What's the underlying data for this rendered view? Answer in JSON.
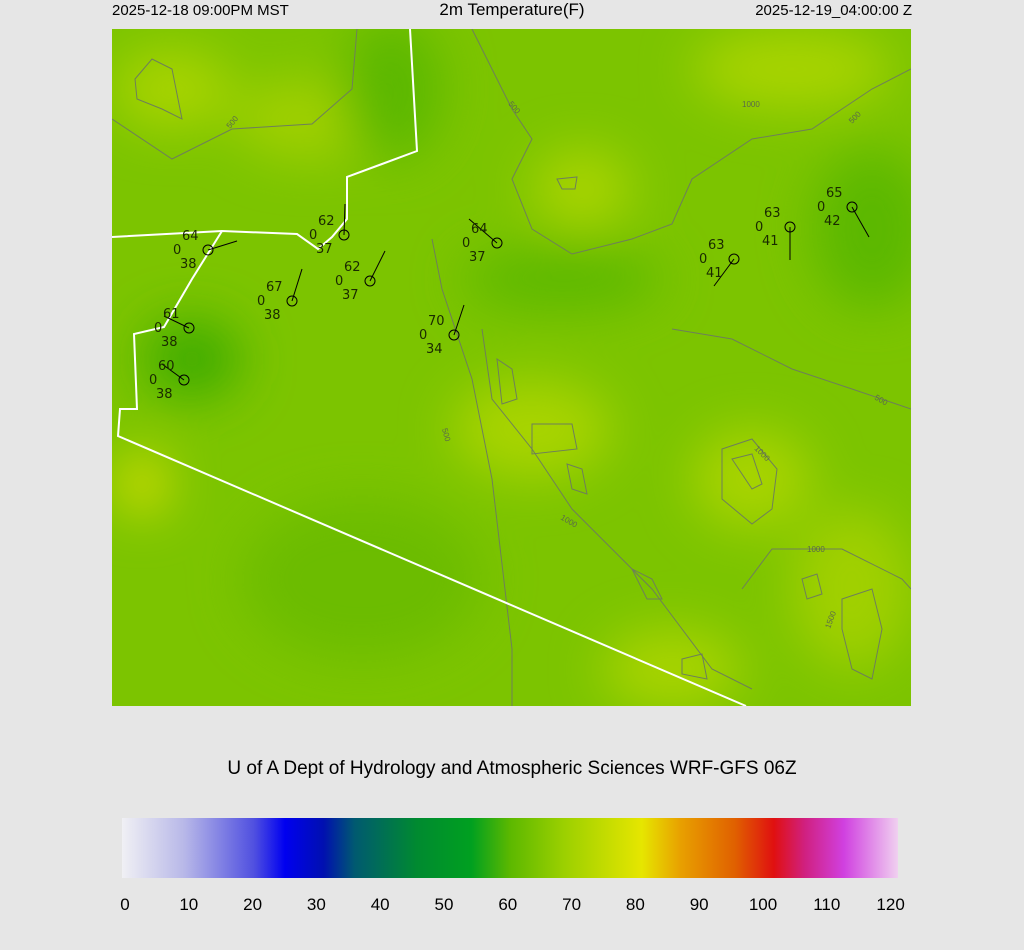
{
  "header": {
    "local_time": "2025-12-18 09:00PM MST",
    "title": "2m Temperature(F)",
    "valid_time": "2025-12-19_04:00:00 Z"
  },
  "credit": "U of A Dept of Hydrology and Atmospheric Sciences WRF-GFS 06Z",
  "contour_labels": [
    "500",
    "1000",
    "500",
    "500",
    "1000",
    "1000",
    "1000",
    "1500",
    "500",
    "500"
  ],
  "stations": [
    {
      "temp": "64",
      "mid": "0",
      "dew": "38"
    },
    {
      "temp": "62",
      "mid": "0",
      "dew": "37"
    },
    {
      "temp": "62",
      "mid": "0",
      "dew": "37"
    },
    {
      "temp": "67",
      "mid": "0",
      "dew": "38"
    },
    {
      "temp": "61",
      "mid": "0",
      "dew": "38"
    },
    {
      "temp": "60",
      "mid": "0",
      "dew": "38"
    },
    {
      "temp": "64",
      "mid": "0",
      "dew": "37"
    },
    {
      "temp": "70",
      "mid": "0",
      "dew": "34"
    },
    {
      "temp": "63",
      "mid": "0",
      "dew": "41"
    },
    {
      "temp": "63",
      "mid": "0",
      "dew": "41"
    },
    {
      "temp": "65",
      "mid": "0",
      "dew": "42"
    }
  ],
  "colorbar": {
    "ticks": [
      "0",
      "10",
      "20",
      "30",
      "40",
      "50",
      "60",
      "70",
      "80",
      "90",
      "100",
      "110",
      "120"
    ],
    "range": [
      0,
      120
    ],
    "units": "F"
  }
}
